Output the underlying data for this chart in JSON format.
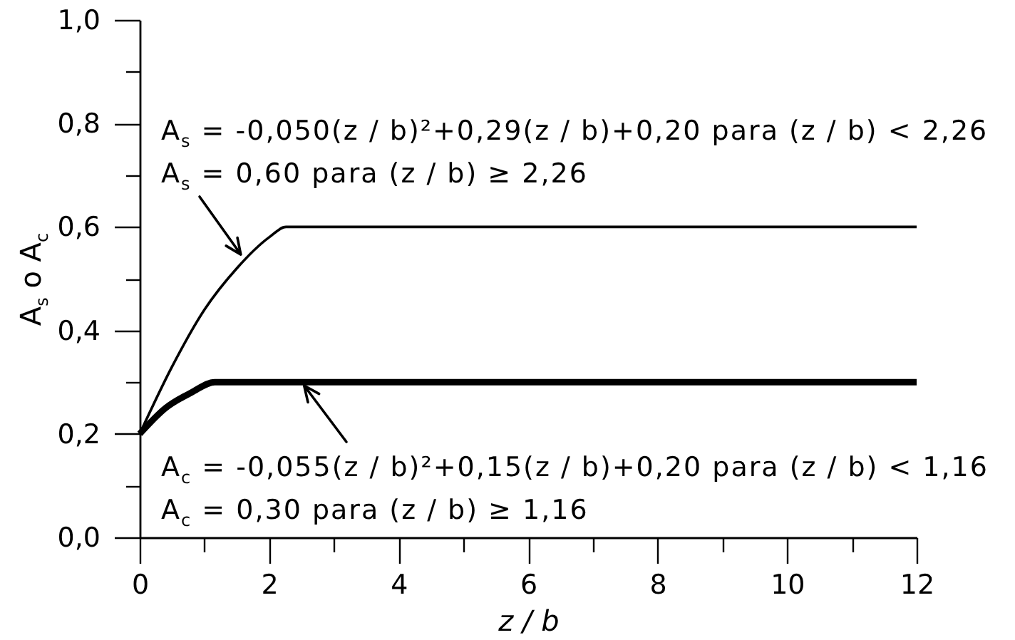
{
  "chart_data": {
    "type": "line",
    "xlabel": "z / b",
    "ylabel": "A$_{s}$ o A$_{c}$",
    "xlim": [
      0,
      12
    ],
    "xticks": [
      0,
      {
        "value": 1,
        "label": null
      },
      2,
      {
        "value": 3,
        "label": null
      },
      4,
      {
        "value": 5,
        "label": null
      },
      6,
      {
        "value": 7,
        "label": null
      },
      8,
      {
        "value": 9,
        "label": null
      },
      10,
      {
        "value": 11,
        "label": null
      },
      12
    ],
    "ylim": [
      0,
      1
    ],
    "yticks": [
      {
        "value": 0,
        "label": "0,0"
      },
      {
        "value": 0.1,
        "label": null
      },
      {
        "value": 0.2,
        "label": "0,2"
      },
      {
        "value": 0.3,
        "label": null
      },
      {
        "value": 0.4,
        "label": "0,4"
      },
      {
        "value": 0.5,
        "label": null
      },
      {
        "value": 0.6,
        "label": "0,6"
      },
      {
        "value": 0.7,
        "label": null
      },
      {
        "value": 0.8,
        "label": "0,8"
      },
      {
        "value": 0.9,
        "label": null
      },
      {
        "value": 1,
        "label": "1,0"
      }
    ],
    "series": [
      {
        "color": "#000000",
        "x": [
          0,
          0.5,
          1,
          1.5,
          2,
          2.26,
          12
        ],
        "values": [
          0.2,
          0.33,
          0.44,
          0.52,
          0.58,
          0.6,
          0.6
        ]
      },
      {
        "color": "#000000",
        "x": [
          0,
          0.4,
          0.8,
          1.16,
          12
        ],
        "values": [
          0.2,
          0.25,
          0.28,
          0.3,
          0.3
        ]
      }
    ],
    "annotations": [
      "A$_{s}$ = -0,050(z / b)²+0,29(z / b)+0,20 para (z / b) < 2,26",
      {
        "text": "A$_{s}$ = 0,60 para (z / b) ≥ 2,26",
        "x": 1.6,
        "y": 0.54
      },
      {
        "text": "A$_{c}$ = -0,055(z / b)²+0,15(z / b)+0,20 para (z / b) < 1,16",
        "x": 2.5,
        "y": 0.3
      },
      "A$_{c}$ = 0,30 para (z / b) ≥ 1,16"
    ]
  }
}
